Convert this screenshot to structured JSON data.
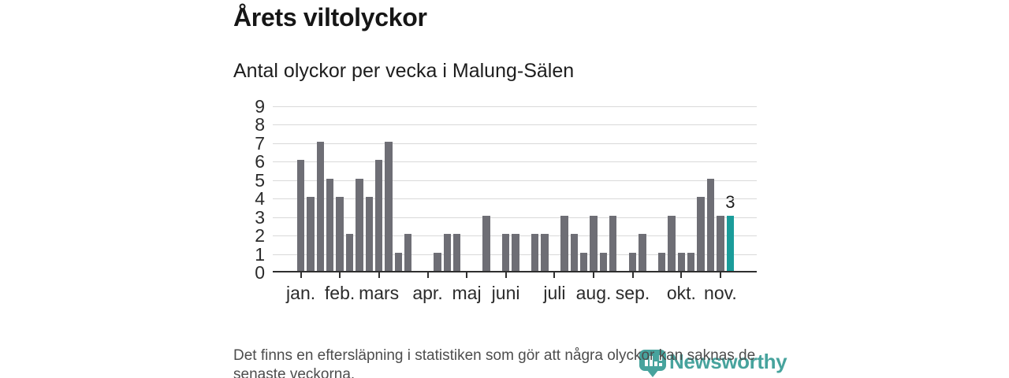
{
  "header": {
    "title": "Årets viltolyckor",
    "subtitle": "Antal olyckor per vecka i Malung-Sälen"
  },
  "chart_data": {
    "type": "bar",
    "title": "Årets viltolyckor",
    "subtitle": "Antal olyckor per vecka i Malung-Sälen",
    "x_unit": "vecka",
    "categories_weeks": [
      1,
      2,
      3,
      4,
      5,
      6,
      7,
      8,
      9,
      10,
      11,
      12,
      13,
      14,
      15,
      16,
      17,
      18,
      19,
      20,
      21,
      22,
      23,
      24,
      25,
      26,
      27,
      28,
      29,
      30,
      31,
      32,
      33,
      34,
      35,
      36,
      37,
      38,
      39,
      40,
      41,
      42,
      43,
      44,
      45
    ],
    "values": [
      6,
      4,
      7,
      5,
      4,
      2,
      5,
      4,
      6,
      7,
      1,
      2,
      0,
      0,
      1,
      2,
      2,
      0,
      0,
      3,
      0,
      2,
      2,
      0,
      2,
      2,
      0,
      3,
      2,
      1,
      3,
      1,
      3,
      0,
      1,
      2,
      0,
      1,
      3,
      1,
      1,
      4,
      5,
      3,
      3
    ],
    "highlight_last": true,
    "highlight_value_label": "3",
    "ylim": [
      0,
      9
    ],
    "yticks": [
      0,
      1,
      2,
      3,
      4,
      5,
      6,
      7,
      8,
      9
    ],
    "xticks": [
      {
        "label": "jan.",
        "week": 1
      },
      {
        "label": "feb.",
        "week": 5
      },
      {
        "label": "mars",
        "week": 9
      },
      {
        "label": "apr.",
        "week": 14
      },
      {
        "label": "maj",
        "week": 18
      },
      {
        "label": "juni",
        "week": 22
      },
      {
        "label": "juli",
        "week": 27
      },
      {
        "label": "aug.",
        "week": 31
      },
      {
        "label": "sep.",
        "week": 35
      },
      {
        "label": "okt.",
        "week": 40
      },
      {
        "label": "nov.",
        "week": 44
      }
    ],
    "grid": true,
    "legend": "none",
    "colors": {
      "bar": "#6e6e75",
      "highlight": "#1a9c9a",
      "grid": "#d9d9d9",
      "axis": "#2f2f2f",
      "tick_label": "#2b2b2b"
    }
  },
  "footer": {
    "lines": [
      "Det finns en eftersläpning i statistiken som gör att några olyckor kan saknas de",
      "senaste veckorna."
    ]
  },
  "logo": {
    "name": "Newsworthy",
    "color": "#47a39d"
  }
}
